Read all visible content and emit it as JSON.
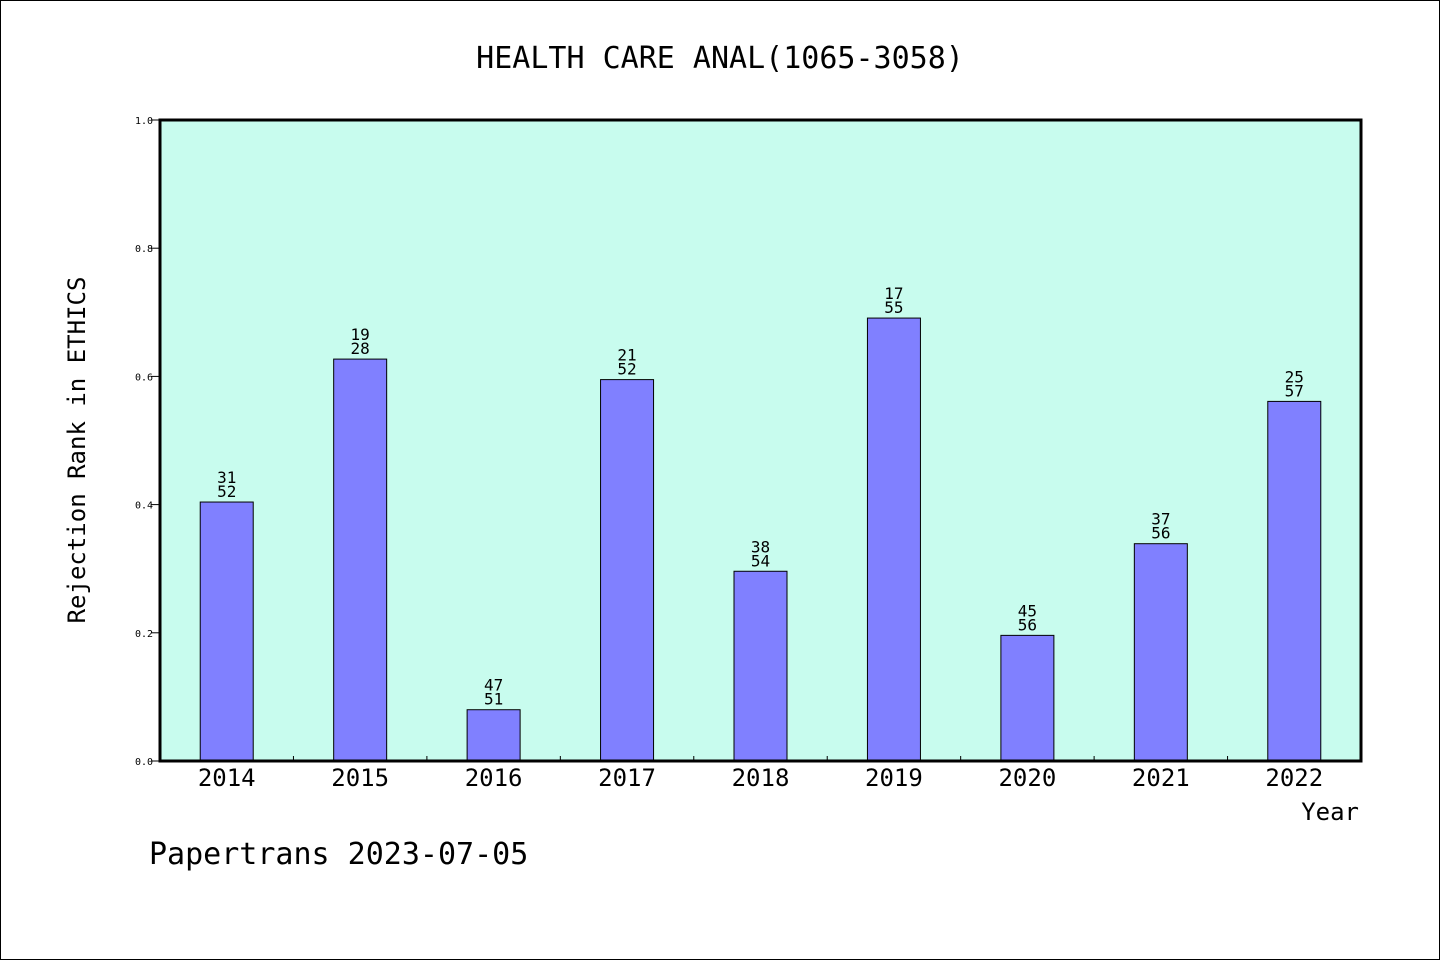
{
  "chart_data": {
    "type": "bar",
    "title": "HEALTH CARE ANAL(1065-3058)",
    "xlabel": "Year",
    "ylabel": "Rejection Rank in ETHICS",
    "categories": [
      "2014",
      "2015",
      "2016",
      "2017",
      "2018",
      "2019",
      "2020",
      "2021",
      "2022"
    ],
    "values": [
      0.404,
      0.627,
      0.08,
      0.595,
      0.296,
      0.691,
      0.196,
      0.339,
      0.561
    ],
    "labels_top": [
      "31",
      "19",
      "47",
      "21",
      "38",
      "17",
      "45",
      "37",
      "25"
    ],
    "labels_bottom": [
      "52",
      "28",
      "51",
      "52",
      "54",
      "55",
      "56",
      "56",
      "57"
    ],
    "ylim": [
      0,
      1.0
    ],
    "yticks": [
      "0.0",
      "0.2",
      "0.4",
      "0.6",
      "0.8",
      "1.0"
    ],
    "grid": false,
    "legend": "none",
    "colors": {
      "bar": "#8080ff",
      "plot_background": "#c8fcee",
      "frame": "#000000"
    }
  },
  "footer": {
    "text": "Papertrans 2023-07-05"
  }
}
